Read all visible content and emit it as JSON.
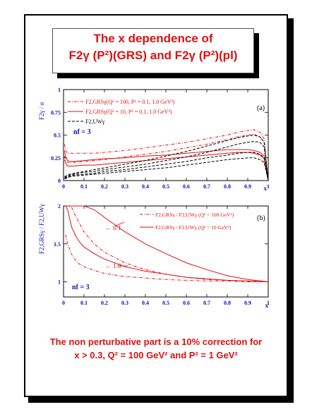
{
  "title": {
    "line1": "The x dependence of",
    "line2": "F2γ (P²)(GRS) and F2γ (P²)(pl)"
  },
  "note": {
    "line1": "The non perturbative part is a 10% correction for",
    "line2": "x > 0.3, Q² = 100 GeV² and P² = 1 GeV²"
  },
  "colors": {
    "red": "#e01010",
    "black": "#000000",
    "blue": "#1010c0"
  },
  "chart_data": [
    {
      "type": "line",
      "panel_label": "(a)",
      "ylabel": "F2γ / α",
      "xlabel": "x",
      "xlim": [
        0,
        1
      ],
      "ylim": [
        0,
        1
      ],
      "xticks": [
        "0",
        "0.1",
        "0.2",
        "0.3",
        "0.4",
        "0.5",
        "0.6",
        "0.7",
        "0.8",
        "0.9",
        "1"
      ],
      "yticks": [
        "0",
        "0.25",
        "0.5",
        "0.75",
        "1"
      ],
      "annotation": "nf = 3",
      "legend": [
        {
          "label": "F2,GRSγ(Q² = 100, P² = 0.1, 1.0 GeV²)",
          "style": "dash-dot",
          "color": "#e01010"
        },
        {
          "label": "F2,GRSγ(Q² = 10, P² = 0.1, 1.0 GeV²)",
          "style": "solid",
          "color": "#e01010"
        },
        {
          "label": "F2,UWγ",
          "style": "dashed",
          "color": "#000000"
        }
      ],
      "x": [
        0.005,
        0.01,
        0.02,
        0.03,
        0.05,
        0.1,
        0.15,
        0.2,
        0.3,
        0.4,
        0.5,
        0.6,
        0.7,
        0.8,
        0.85,
        0.9,
        0.93,
        0.96,
        0.98,
        1.0
      ],
      "series": [
        {
          "style": "dash-dot",
          "color": "#e01010",
          "values": [
            0.4,
            0.33,
            0.3,
            0.3,
            0.3,
            0.3,
            0.3,
            0.31,
            0.33,
            0.36,
            0.39,
            0.42,
            0.46,
            0.5,
            0.53,
            0.55,
            0.56,
            0.53,
            0.46,
            0.0
          ]
        },
        {
          "style": "dash-dot",
          "color": "#e01010",
          "values": [
            0.27,
            0.22,
            0.2,
            0.2,
            0.2,
            0.21,
            0.22,
            0.23,
            0.26,
            0.29,
            0.32,
            0.36,
            0.4,
            0.45,
            0.48,
            0.5,
            0.51,
            0.48,
            0.42,
            0.0
          ]
        },
        {
          "style": "solid",
          "color": "#e01010",
          "values": [
            0.33,
            0.26,
            0.22,
            0.21,
            0.21,
            0.22,
            0.23,
            0.24,
            0.25,
            0.27,
            0.28,
            0.3,
            0.32,
            0.34,
            0.34,
            0.34,
            0.33,
            0.31,
            0.27,
            0.0
          ]
        },
        {
          "style": "solid",
          "color": "#e01010",
          "values": [
            0.23,
            0.19,
            0.16,
            0.16,
            0.16,
            0.17,
            0.17,
            0.18,
            0.2,
            0.22,
            0.24,
            0.26,
            0.28,
            0.3,
            0.31,
            0.31,
            0.3,
            0.28,
            0.24,
            0.0
          ]
        },
        {
          "style": "dashed",
          "color": "#000000",
          "values": [
            0.04,
            0.05,
            0.06,
            0.07,
            0.08,
            0.1,
            0.12,
            0.14,
            0.18,
            0.22,
            0.27,
            0.32,
            0.38,
            0.44,
            0.47,
            0.49,
            0.5,
            0.48,
            0.42,
            0.0
          ]
        },
        {
          "style": "dashed",
          "color": "#000000",
          "values": [
            0.03,
            0.04,
            0.05,
            0.06,
            0.07,
            0.09,
            0.1,
            0.12,
            0.15,
            0.18,
            0.22,
            0.26,
            0.31,
            0.37,
            0.4,
            0.42,
            0.43,
            0.42,
            0.37,
            0.0
          ]
        },
        {
          "style": "dashed",
          "color": "#000000",
          "values": [
            0.02,
            0.03,
            0.04,
            0.05,
            0.06,
            0.07,
            0.08,
            0.1,
            0.12,
            0.15,
            0.18,
            0.21,
            0.25,
            0.28,
            0.3,
            0.31,
            0.31,
            0.29,
            0.25,
            0.0
          ]
        },
        {
          "style": "dashed",
          "color": "#000000",
          "values": [
            0.02,
            0.02,
            0.03,
            0.04,
            0.05,
            0.06,
            0.07,
            0.08,
            0.1,
            0.12,
            0.14,
            0.17,
            0.2,
            0.23,
            0.24,
            0.25,
            0.25,
            0.23,
            0.2,
            0.0
          ]
        }
      ]
    },
    {
      "type": "line",
      "panel_label": "(b)",
      "ylabel": "F2,GRSγ / F2,UWγ",
      "xlabel": "x",
      "xlim": [
        0,
        1
      ],
      "ylim": [
        0.8,
        2.0
      ],
      "xticks": [
        "0",
        "0.1",
        "0.2",
        "0.3",
        "0.4",
        "0.5",
        "0.6",
        "0.7",
        "0.8",
        "0.9",
        "1"
      ],
      "yticks": [
        "1",
        "1.5",
        "2"
      ],
      "annotation": "nf = 3",
      "labels": [
        "← 0.1",
        "← 1.0"
      ],
      "legend": [
        {
          "label": "F2,GRSγ / F2,UWγ (Q² = 100 GeV²)",
          "style": "dash-dot",
          "color": "#e01010"
        },
        {
          "label": "F2,GRSγ / F2,UWγ (Q² =  10 GeV²)",
          "style": "solid",
          "color": "#e01010"
        }
      ],
      "x": [
        0.01,
        0.02,
        0.04,
        0.06,
        0.08,
        0.1,
        0.15,
        0.2,
        0.3,
        0.4,
        0.5,
        0.6,
        0.7,
        0.8,
        0.9,
        1.0
      ],
      "series": [
        {
          "style": "solid",
          "color": "#e01010",
          "values": [
            2.0,
            2.0,
            2.0,
            2.0,
            2.0,
            2.0,
            1.95,
            1.85,
            1.66,
            1.5,
            1.37,
            1.25,
            1.16,
            1.08,
            1.03,
            1.0
          ]
        },
        {
          "style": "solid",
          "color": "#e01010",
          "values": [
            2.0,
            1.95,
            1.72,
            1.6,
            1.52,
            1.46,
            1.37,
            1.3,
            1.2,
            1.14,
            1.1,
            1.06,
            1.04,
            1.02,
            1.01,
            1.0
          ]
        },
        {
          "style": "dash-dot",
          "color": "#e01010",
          "values": [
            2.0,
            2.0,
            1.98,
            1.86,
            1.76,
            1.66,
            1.5,
            1.39,
            1.25,
            1.16,
            1.1,
            1.06,
            1.03,
            1.02,
            1.01,
            1.0
          ]
        },
        {
          "style": "dash-dot",
          "color": "#e01010",
          "values": [
            1.62,
            1.5,
            1.36,
            1.28,
            1.23,
            1.2,
            1.15,
            1.11,
            1.07,
            1.05,
            1.03,
            1.02,
            1.01,
            1.01,
            1.0,
            1.0
          ]
        }
      ]
    }
  ]
}
